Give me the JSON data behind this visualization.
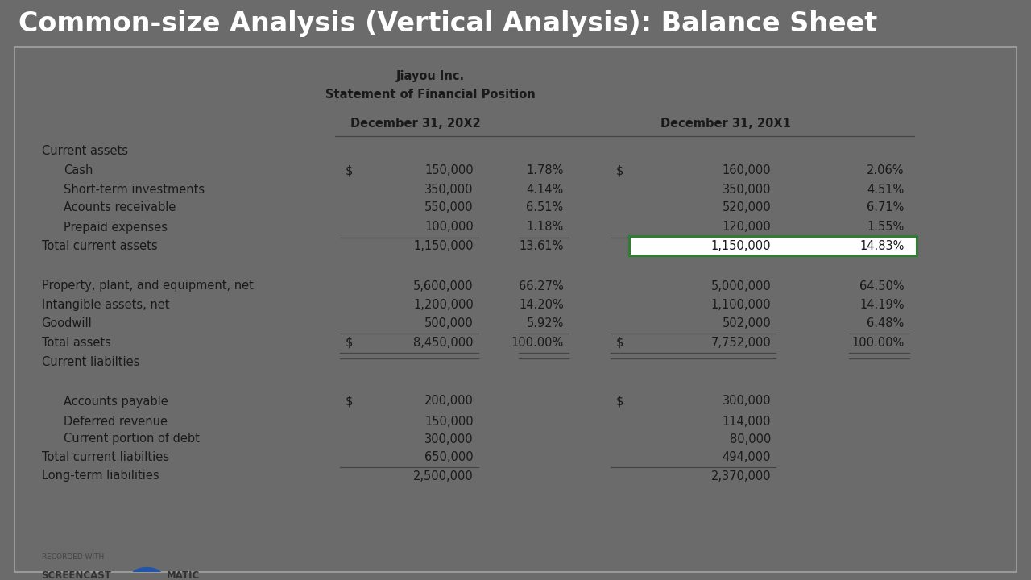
{
  "title": "Common-size Analysis (Vertical Analysis): Balance Sheet",
  "title_fontsize": 24,
  "title_bg": "#636363",
  "title_color": "#ffffff",
  "table_bg": "#d8dbb8",
  "company_name": "Jiayou Inc.",
  "statement_title": "Statement of Financial Position",
  "col_header_1": "December 31, 20X2",
  "col_header_2": "December 31, 20X1",
  "rows": [
    {
      "label": "Current assets",
      "indent": 0,
      "type": "header",
      "v1": "",
      "p1": "",
      "s1": "",
      "v2": "",
      "p2": "",
      "s2": ""
    },
    {
      "label": "Cash",
      "indent": 1,
      "type": "data",
      "v1": "150,000",
      "p1": "1.78%",
      "s1": "$",
      "v2": "160,000",
      "p2": "2.06%",
      "s2": "$"
    },
    {
      "label": "Short-term investments",
      "indent": 1,
      "type": "data",
      "v1": "350,000",
      "p1": "4.14%",
      "s1": "",
      "v2": "350,000",
      "p2": "4.51%",
      "s2": ""
    },
    {
      "label": "Acounts receivable",
      "indent": 1,
      "type": "data",
      "v1": "550,000",
      "p1": "6.51%",
      "s1": "",
      "v2": "520,000",
      "p2": "6.71%",
      "s2": ""
    },
    {
      "label": "Prepaid expenses",
      "indent": 1,
      "type": "data_uline",
      "v1": "100,000",
      "p1": "1.18%",
      "s1": "",
      "v2": "120,000",
      "p2": "1.55%",
      "s2": ""
    },
    {
      "label": "Total current assets",
      "indent": 0,
      "type": "subtotal",
      "v1": "1,150,000",
      "p1": "13.61%",
      "s1": "",
      "v2": "1,150,000",
      "p2": "14.83%",
      "s2": "",
      "highlight_p2": true
    },
    {
      "label": "",
      "indent": 0,
      "type": "spacer",
      "v1": "",
      "p1": "",
      "s1": "",
      "v2": "",
      "p2": "",
      "s2": ""
    },
    {
      "label": "Property, plant, and equipment, net",
      "indent": 0,
      "type": "data",
      "v1": "5,600,000",
      "p1": "66.27%",
      "s1": "",
      "v2": "5,000,000",
      "p2": "64.50%",
      "s2": ""
    },
    {
      "label": "Intangible assets, net",
      "indent": 0,
      "type": "data",
      "v1": "1,200,000",
      "p1": "14.20%",
      "s1": "",
      "v2": "1,100,000",
      "p2": "14.19%",
      "s2": ""
    },
    {
      "label": "Goodwill",
      "indent": 0,
      "type": "data_uline",
      "v1": "500,000",
      "p1": "5.92%",
      "s1": "",
      "v2": "502,000",
      "p2": "6.48%",
      "s2": ""
    },
    {
      "label": "Total assets",
      "indent": 0,
      "type": "total",
      "v1": "8,450,000",
      "p1": "100.00%",
      "s1": "$",
      "v2": "7,752,000",
      "p2": "100.00%",
      "s2": "$"
    },
    {
      "label": "",
      "indent": 0,
      "type": "spacer",
      "v1": "",
      "p1": "",
      "s1": "",
      "v2": "",
      "p2": "",
      "s2": ""
    },
    {
      "label": "Current liabilties",
      "indent": 0,
      "type": "header",
      "v1": "",
      "p1": "",
      "s1": "",
      "v2": "",
      "p2": "",
      "s2": ""
    },
    {
      "label": "Accounts payable",
      "indent": 1,
      "type": "data",
      "v1": "200,000",
      "p1": "",
      "s1": "$",
      "v2": "300,000",
      "p2": "",
      "s2": "$"
    },
    {
      "label": "Deferred revenue",
      "indent": 1,
      "type": "data",
      "v1": "150,000",
      "p1": "",
      "s1": "",
      "v2": "114,000",
      "p2": "",
      "s2": ""
    },
    {
      "label": "Current portion of debt",
      "indent": 1,
      "type": "data",
      "v1": "300,000",
      "p1": "",
      "s1": "",
      "v2": "80,000",
      "p2": "",
      "s2": ""
    },
    {
      "label": "Total current liabilties",
      "indent": 0,
      "type": "subtotal_uline",
      "v1": "650,000",
      "p1": "",
      "s1": "",
      "v2": "494,000",
      "p2": "",
      "s2": ""
    },
    {
      "label": "",
      "indent": 0,
      "type": "spacer",
      "v1": "",
      "p1": "",
      "s1": "",
      "v2": "",
      "p2": "",
      "s2": ""
    },
    {
      "label": "Long-term liabilities",
      "indent": 0,
      "type": "data_cut",
      "v1": "2,500,000",
      "p1": "",
      "s1": "",
      "v2": "2,370,000",
      "p2": "",
      "s2": ""
    }
  ],
  "font_family": "DejaVu Sans",
  "highlight_color": "#ffffff",
  "highlight_border": "#2e7d32",
  "outer_bg": "#6b6b6b"
}
